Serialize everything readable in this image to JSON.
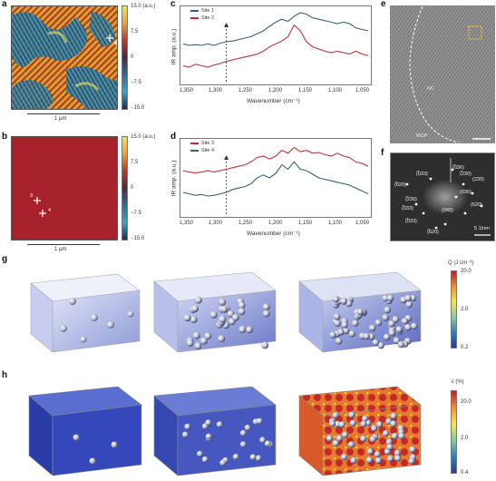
{
  "panels": {
    "a": {
      "label": "a",
      "scale": "1 μm",
      "colorbar": {
        "ticks": [
          "15.0 (a.u.)",
          "7.5",
          "0",
          "−7.5",
          "−15.0"
        ]
      }
    },
    "b": {
      "label": "b",
      "scale": "1 μm",
      "marker_labels": [
        "3",
        "4"
      ],
      "colorbar": {
        "ticks": [
          "15.0 (a.u.)",
          "7.5",
          "0",
          "−7.5",
          "−15.0"
        ]
      }
    },
    "c": {
      "label": "c",
      "xlabel": "Wavenumber (cm⁻¹)",
      "ylabel": "IR amp. (a.u.)",
      "xticks": [
        "1,350",
        "1,300",
        "1,250",
        "1,200",
        "1,150",
        "1,100",
        "1,050"
      ],
      "legend": [
        "Site 1",
        "Site 2"
      ]
    },
    "d": {
      "label": "d",
      "xlabel": "Wavenumber (cm⁻¹)",
      "ylabel": "IR amp. (a.u.)",
      "xticks": [
        "1,350",
        "1,300",
        "1,250",
        "1,200",
        "1,150",
        "1,100",
        "1,050"
      ],
      "legend": [
        "Site 3",
        "Site 4"
      ]
    },
    "e": {
      "label": "e",
      "regions": [
        "NC",
        "MGP"
      ]
    },
    "f": {
      "label": "f",
      "spots": [
        "(̅620)",
        "(̅033)",
        "(̅230)",
        "(̅036)",
        "(036)",
        "(̅230)",
        "(̅033)",
        "(̅033)",
        "(040)",
        "(̅620)",
        "(620)",
        "(230)"
      ],
      "scale": "5 1/nm"
    },
    "g": {
      "label": "g",
      "colorbar": {
        "title": "Q (J cm⁻³)",
        "ticks": [
          "20.0",
          "2.0",
          "0.2"
        ]
      }
    },
    "h": {
      "label": "h",
      "colorbar": {
        "title": "ε (%)",
        "ticks": [
          "20.0",
          "2.0",
          "0.4"
        ]
      }
    }
  },
  "chart_data": [
    {
      "type": "line",
      "panel": "c",
      "xlabel": "Wavenumber (cm⁻¹)",
      "ylabel": "IR amp. (a.u.)",
      "xlim": [
        1350,
        1050
      ],
      "x": [
        1350,
        1340,
        1330,
        1320,
        1310,
        1300,
        1290,
        1280,
        1270,
        1260,
        1250,
        1240,
        1230,
        1220,
        1210,
        1200,
        1190,
        1180,
        1170,
        1160,
        1150,
        1140,
        1130,
        1120,
        1110,
        1100,
        1090,
        1080,
        1070,
        1060,
        1050
      ],
      "series": [
        {
          "name": "Site 1",
          "color": "#3a5f7a",
          "values": [
            0.52,
            0.5,
            0.51,
            0.5,
            0.52,
            0.5,
            0.53,
            0.55,
            0.56,
            0.58,
            0.6,
            0.62,
            0.66,
            0.7,
            0.76,
            0.82,
            0.86,
            0.83,
            0.9,
            0.95,
            0.93,
            0.88,
            0.86,
            0.84,
            0.82,
            0.8,
            0.82,
            0.8,
            0.74,
            0.72,
            0.7
          ]
        },
        {
          "name": "Site 2",
          "color": "#b8343a",
          "values": [
            0.22,
            0.2,
            0.24,
            0.22,
            0.2,
            0.23,
            0.25,
            0.28,
            0.3,
            0.32,
            0.34,
            0.36,
            0.38,
            0.42,
            0.48,
            0.52,
            0.56,
            0.62,
            0.78,
            0.7,
            0.55,
            0.48,
            0.45,
            0.42,
            0.4,
            0.42,
            0.4,
            0.38,
            0.42,
            0.38,
            0.36
          ]
        }
      ]
    },
    {
      "type": "line",
      "panel": "d",
      "xlabel": "Wavenumber (cm⁻¹)",
      "ylabel": "IR amp. (a.u.)",
      "xlim": [
        1350,
        1050
      ],
      "x": [
        1350,
        1340,
        1330,
        1320,
        1310,
        1300,
        1290,
        1280,
        1270,
        1260,
        1250,
        1240,
        1230,
        1220,
        1210,
        1200,
        1190,
        1180,
        1170,
        1160,
        1150,
        1140,
        1130,
        1120,
        1110,
        1100,
        1090,
        1080,
        1070,
        1060,
        1050
      ],
      "series": [
        {
          "name": "Site 3",
          "color": "#b8343a",
          "values": [
            0.6,
            0.58,
            0.57,
            0.58,
            0.6,
            0.58,
            0.6,
            0.62,
            0.64,
            0.66,
            0.68,
            0.72,
            0.78,
            0.8,
            0.76,
            0.8,
            0.88,
            0.84,
            0.92,
            0.86,
            0.88,
            0.84,
            0.85,
            0.82,
            0.8,
            0.84,
            0.8,
            0.78,
            0.72,
            0.7,
            0.66
          ]
        },
        {
          "name": "Site 4",
          "color": "#3a5f7a",
          "values": [
            0.3,
            0.28,
            0.26,
            0.27,
            0.25,
            0.26,
            0.28,
            0.3,
            0.34,
            0.36,
            0.38,
            0.42,
            0.5,
            0.54,
            0.5,
            0.56,
            0.68,
            0.62,
            0.72,
            0.62,
            0.6,
            0.55,
            0.5,
            0.48,
            0.46,
            0.44,
            0.42,
            0.4,
            0.36,
            0.32,
            0.28
          ]
        }
      ]
    }
  ]
}
